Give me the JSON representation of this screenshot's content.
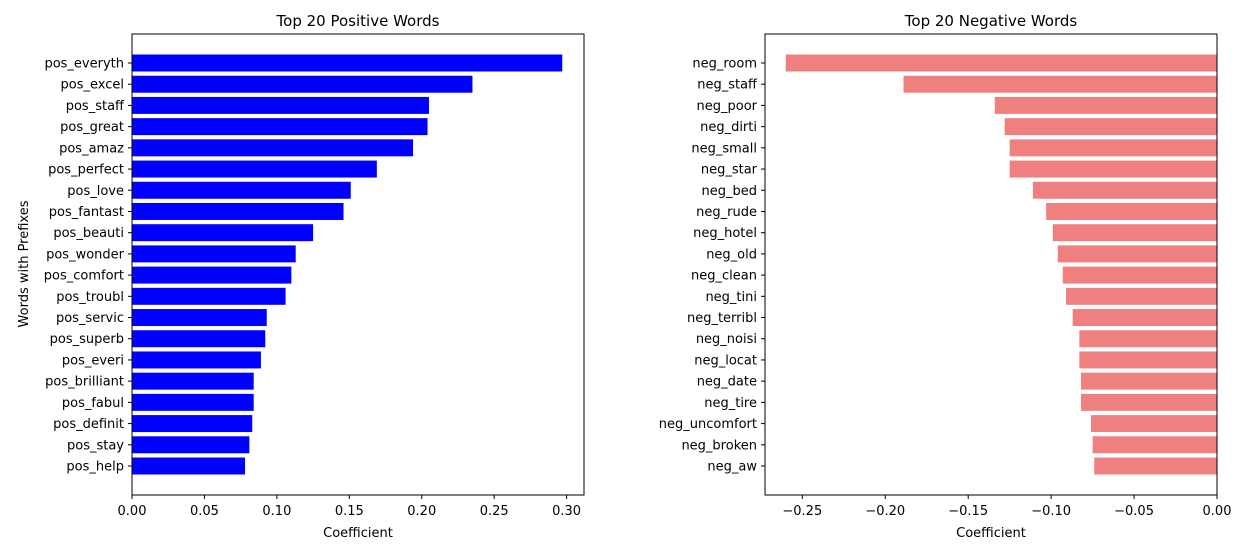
{
  "chart_data": [
    {
      "type": "bar",
      "orientation": "horizontal",
      "title": "Top 20 Positive Words",
      "xlabel": "Coefficient",
      "ylabel": "Words with Prefixes",
      "color": "#0000ff",
      "xlim": [
        0.0,
        0.312
      ],
      "xticks": [
        "0.00",
        "0.05",
        "0.10",
        "0.15",
        "0.20",
        "0.25",
        "0.30"
      ],
      "grid": false,
      "categories": [
        "pos_everyth",
        "pos_excel",
        "pos_staff",
        "pos_great",
        "pos_amaz",
        "pos_perfect",
        "pos_love",
        "pos_fantast",
        "pos_beauti",
        "pos_wonder",
        "pos_comfort",
        "pos_troubl",
        "pos_servic",
        "pos_superb",
        "pos_everi",
        "pos_brilliant",
        "pos_fabul",
        "pos_definit",
        "pos_stay",
        "pos_help"
      ],
      "values": [
        0.297,
        0.235,
        0.205,
        0.204,
        0.194,
        0.169,
        0.151,
        0.146,
        0.125,
        0.113,
        0.11,
        0.106,
        0.093,
        0.092,
        0.089,
        0.084,
        0.084,
        0.083,
        0.081,
        0.078
      ]
    },
    {
      "type": "bar",
      "orientation": "horizontal",
      "title": "Top 20 Negative Words",
      "xlabel": "Coefficient",
      "ylabel": "",
      "color": "#f08080",
      "xlim": [
        -0.2725,
        0.0
      ],
      "xticks": [
        "−0.25",
        "−0.20",
        "−0.15",
        "−0.10",
        "−0.05",
        "0.00"
      ],
      "grid": false,
      "categories": [
        "neg_room",
        "neg_staff",
        "neg_poor",
        "neg_dirti",
        "neg_small",
        "neg_star",
        "neg_bed",
        "neg_rude",
        "neg_hotel",
        "neg_old",
        "neg_clean",
        "neg_tini",
        "neg_terribl",
        "neg_noisi",
        "neg_locat",
        "neg_date",
        "neg_tire",
        "neg_uncomfort",
        "neg_broken",
        "neg_aw"
      ],
      "values": [
        -0.26,
        -0.189,
        -0.134,
        -0.128,
        -0.125,
        -0.125,
        -0.111,
        -0.103,
        -0.099,
        -0.096,
        -0.093,
        -0.091,
        -0.087,
        -0.083,
        -0.083,
        -0.082,
        -0.082,
        -0.076,
        -0.075,
        -0.074
      ]
    }
  ]
}
